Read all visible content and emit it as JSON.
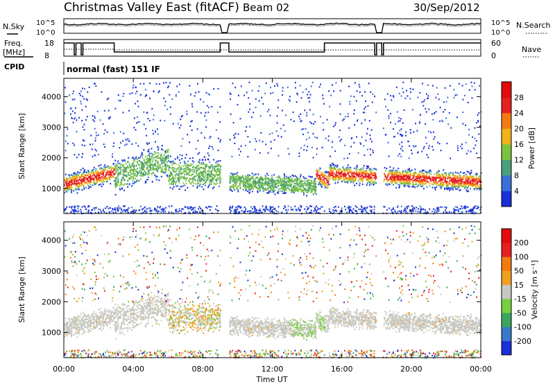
{
  "header": {
    "title": "Christmas Valley East (fitACF)",
    "beam": "Beam 02",
    "date": "30/Sep/2012"
  },
  "strips": {
    "nsky_label": "N.Sky",
    "nsky_ticks": [
      "10^5",
      "10^0"
    ],
    "nsearch_label": "N.Search",
    "nsearch_ticks": [
      "10^5",
      "10^0"
    ],
    "freq_label": "Freq.",
    "freq_unit": "[MHz]",
    "freq_ticks": [
      "18",
      "8"
    ],
    "nave_label": "Nave",
    "nave_ticks": [
      "60",
      "0"
    ],
    "cpid_label": "CPID",
    "cpid_text": "normal (fast) 151 IF"
  },
  "chart_data": [
    {
      "type": "heatmap",
      "name": "power",
      "ylabel": "Slant Range [km]",
      "y_ticks": [
        "1000",
        "2000",
        "3000",
        "4000"
      ],
      "ylim": [
        180,
        4600
      ],
      "colorbar_label": "Power [dB]",
      "colorbar_ticks": [
        "4",
        "8",
        "12",
        "16",
        "20",
        "24",
        "28"
      ],
      "colorbar_colors": [
        "#1a2fd6",
        "#3a6fd8",
        "#4aa07a",
        "#7cc23c",
        "#f2b21c",
        "#f27a12",
        "#e62020",
        "#e20a0a"
      ],
      "bands": [
        {
          "t": [
            0.0,
            2.9
          ],
          "r": [
            1050,
            1800
          ],
          "level": "high"
        },
        {
          "t": [
            2.9,
            9.0
          ],
          "r": [
            1100,
            2300
          ],
          "level": "mid"
        },
        {
          "t": [
            9.5,
            14.5
          ],
          "r": [
            900,
            1600
          ],
          "level": "mid"
        },
        {
          "t": [
            15.0,
            24.0
          ],
          "r": [
            1000,
            1700
          ],
          "level": "high"
        }
      ]
    },
    {
      "type": "heatmap",
      "name": "velocity",
      "ylabel": "Slant Range [km]",
      "y_ticks": [
        "1000",
        "2000",
        "3000",
        "4000"
      ],
      "ylim": [
        180,
        4600
      ],
      "colorbar_label": "Velocity [m s⁻¹]",
      "colorbar_ticks": [
        "200",
        "100",
        "50",
        "15",
        "-15",
        "-50",
        "-100",
        "-200"
      ],
      "colorbar_colors": [
        "#1a2fd6",
        "#3a78c8",
        "#3aa65e",
        "#78d040",
        "#c8c8c2",
        "#f0a020",
        "#f27a12",
        "#e62020",
        "#e20a0a"
      ]
    }
  ],
  "x_axis": {
    "label": "Time UT",
    "ticks": [
      "00:00",
      "04:00",
      "08:00",
      "12:00",
      "16:00",
      "20:00",
      "00:00"
    ]
  }
}
